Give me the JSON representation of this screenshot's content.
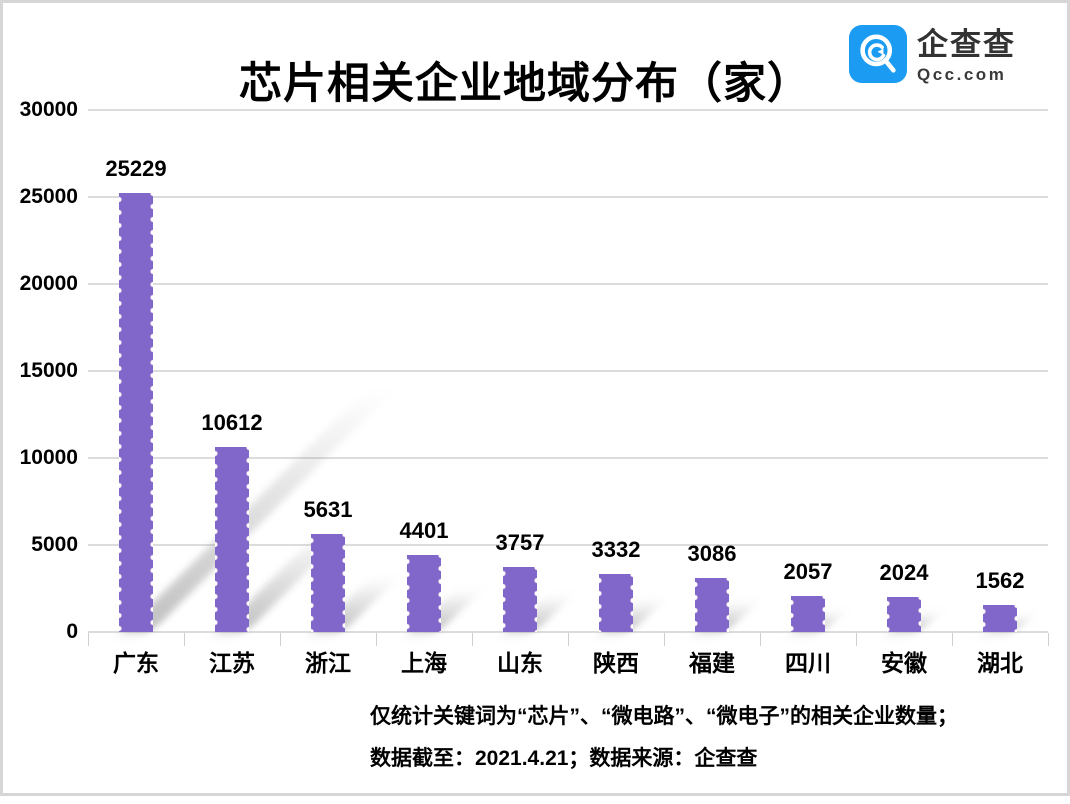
{
  "title": "芯片相关企业地域分布（家）",
  "logo": {
    "name": "企查查",
    "domain": "Qcc.com",
    "brand_color": "#1b9cf2"
  },
  "chart_data": {
    "type": "bar",
    "title": "芯片相关企业地域分布（家）",
    "unit": "家",
    "categories": [
      "广东",
      "江苏",
      "浙江",
      "上海",
      "山东",
      "陕西",
      "福建",
      "四川",
      "安徽",
      "湖北"
    ],
    "values": [
      25229,
      10612,
      5631,
      4401,
      3757,
      3332,
      3086,
      2057,
      2024,
      1562
    ],
    "xlabel": "",
    "ylabel": "",
    "ylim": [
      0,
      30000
    ],
    "yticks": [
      0,
      5000,
      10000,
      15000,
      20000,
      25000,
      30000
    ],
    "grid": true,
    "legend": false,
    "data_labels": true,
    "bar_color": "#8267cb",
    "grid_color": "#dcdcdc"
  },
  "footnote": {
    "line1": "仅统计关键词为“芯片”、“微电路”、“微电子”的相关企业数量；",
    "line2": "数据截至：2021.4.21；数据来源：企查查"
  }
}
